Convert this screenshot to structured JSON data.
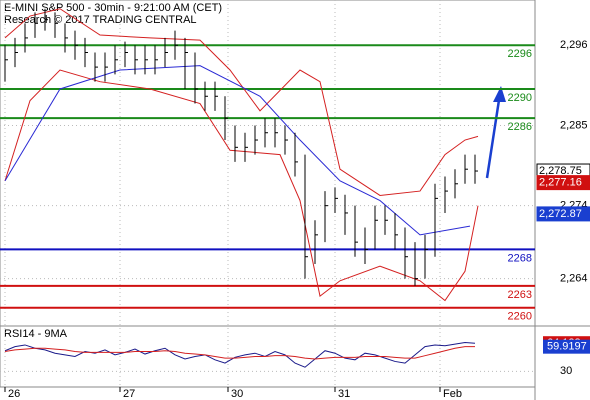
{
  "chart_data": [
    {
      "type": "ohlc",
      "title": "E-MINI S&P 500 - 30min - 9:21:00 AM (CET)",
      "subtitle": "Research © 2017 TRADING CENTRAL",
      "xlim": [
        -0.5,
        53
      ],
      "ylim": [
        2257.5,
        2302.2
      ],
      "xticks": [
        {
          "value": 0,
          "label": "26"
        },
        {
          "value": 11.5,
          "label": "27"
        },
        {
          "value": 22.3,
          "label": "30"
        },
        {
          "value": 33,
          "label": "31"
        },
        {
          "value": 43.5,
          "label": "Feb"
        }
      ],
      "yticks": [
        {
          "value": 2296,
          "label": "2,296"
        },
        {
          "value": 2285,
          "label": "2,285"
        },
        {
          "value": 2274,
          "label": "2,274"
        },
        {
          "value": 2264,
          "label": "2,264"
        }
      ],
      "grid": true,
      "x": [
        0,
        1,
        2,
        3,
        4,
        5,
        6,
        7,
        8,
        9,
        10,
        11,
        12,
        13,
        14,
        15,
        16,
        17,
        18,
        19,
        20,
        21,
        22,
        23,
        24,
        25,
        26,
        27,
        28,
        29,
        30,
        31,
        32,
        33,
        34,
        35,
        36,
        37,
        38,
        39,
        40,
        41,
        42,
        43,
        44,
        45,
        46,
        47
      ],
      "close": [
        2294,
        2295,
        2297,
        2299,
        2299.5,
        2299,
        2297,
        2296,
        2295,
        2293,
        2293,
        2294,
        2295,
        2294,
        2294,
        2294,
        2295,
        2296,
        2295,
        2290,
        2289,
        2289,
        2286,
        2282,
        2282,
        2283,
        2284,
        2284,
        2283,
        2280,
        2267,
        2270,
        2274,
        2275,
        2273,
        2269,
        2268,
        2272,
        2272,
        2270,
        2267,
        2264,
        2268,
        2275,
        2276,
        2277,
        2279,
        2278.75
      ],
      "high": [
        2296,
        2297,
        2299,
        2300.5,
        2301,
        2300.5,
        2299,
        2298,
        2297,
        2295,
        2295,
        2296,
        2296.5,
        2296,
        2296,
        2296,
        2297,
        2298,
        2297,
        2295,
        2291,
        2291,
        2289,
        2285,
        2284,
        2285,
        2286,
        2286,
        2285,
        2284,
        2281,
        2272,
        2276,
        2276.5,
        2275.5,
        2274,
        2271,
        2274,
        2274,
        2273,
        2271,
        2269,
        2270,
        2277,
        2278,
        2279,
        2281,
        2281
      ],
      "low": [
        2291,
        2293,
        2295,
        2297,
        2298,
        2297,
        2295,
        2294,
        2293,
        2291,
        2291,
        2292,
        2293,
        2292,
        2292,
        2292,
        2293,
        2294,
        2290,
        2288,
        2287,
        2287,
        2283,
        2280,
        2280,
        2281,
        2282,
        2282,
        2281,
        2278,
        2264,
        2266,
        2269,
        2273,
        2270,
        2267,
        2266,
        2268,
        2270,
        2268,
        2264,
        2263,
        2264,
        2267,
        2273,
        2275,
        2277,
        2277
      ],
      "color": "#000000",
      "overlays": [
        {
          "color": "#d42020",
          "x": [
            0,
            2.5,
            5.5,
            9.5,
            14.5,
            19.5,
            22.5,
            25.5,
            29.5,
            31.5,
            33.5,
            37.5,
            41.5,
            44,
            46,
            47.3
          ],
          "values": [
            2297,
            2300,
            2301,
            2297.4,
            2297,
            2296.7,
            2292.6,
            2287,
            2292.6,
            2291,
            2279,
            2275.4,
            2276,
            2281,
            2283,
            2283.5
          ]
        },
        {
          "color": "#d42020",
          "x": [
            0,
            2.5,
            5.5,
            9.5,
            14.5,
            19.5,
            22.5,
            27.5,
            29.5,
            31.5,
            33.5,
            37.5,
            41.5,
            44,
            46,
            47.3
          ],
          "values": [
            2277.4,
            2288.4,
            2292.6,
            2291,
            2290,
            2288,
            2281.6,
            2281,
            2274.7,
            2261.6,
            2263.7,
            2265.7,
            2263.7,
            2261,
            2265,
            2274
          ]
        },
        {
          "color": "#2a2ad4",
          "x": [
            0,
            5.5,
            11.5,
            19.5,
            25.5,
            29.5,
            33.5,
            37.5,
            41.5,
            46.5
          ],
          "values": [
            2277.4,
            2290,
            2292.6,
            2293.2,
            2289,
            2283,
            2277.4,
            2274.7,
            2270,
            2271.2
          ]
        }
      ],
      "levels": [
        {
          "value": 2296,
          "color": "#1a8a1a"
        },
        {
          "value": 2290,
          "color": "#1a8a1a"
        },
        {
          "value": 2286,
          "color": "#1a8a1a"
        },
        {
          "value": 2268,
          "color": "#1010c0"
        },
        {
          "value": 2263,
          "color": "#d01010"
        },
        {
          "value": 2260,
          "color": "#d01010"
        }
      ],
      "markers": [
        {
          "value": 2278.75,
          "label": "2,278.75",
          "color": "#000000"
        },
        {
          "value": 2277.16,
          "label": "2,277.16",
          "color": "#d01010"
        },
        {
          "value": 2272.87,
          "label": "2,272.87",
          "color": "#1a3fd0"
        }
      ]
    },
    {
      "type": "line",
      "title": "RSI14 - 9MA",
      "xlim": [
        -0.5,
        53
      ],
      "ylim": [
        11,
        85
      ],
      "yticks": [
        30
      ],
      "x": [
        0,
        1,
        2,
        3,
        4,
        5,
        6,
        7,
        8,
        9,
        10,
        11,
        12,
        13,
        14,
        15,
        16,
        17,
        18,
        19,
        20,
        21,
        22,
        23,
        24,
        25,
        26,
        27,
        28,
        29,
        30,
        31,
        32,
        33,
        34,
        35,
        36,
        37,
        38,
        39,
        40,
        41,
        42,
        43,
        44,
        45,
        46,
        47
      ],
      "series": [
        {
          "color": "#1a1a8a",
          "values": [
            55,
            60,
            62,
            58,
            56,
            52,
            50,
            48,
            54,
            52,
            56,
            50,
            53,
            57,
            51,
            55,
            58,
            50,
            45,
            48,
            50,
            44,
            40,
            47,
            50,
            52,
            48,
            54,
            50,
            40,
            35,
            45,
            55,
            52,
            46,
            44,
            52,
            50,
            46,
            42,
            40,
            50,
            60,
            62,
            61,
            63,
            65,
            64.128
          ]
        },
        {
          "color": "#d42020",
          "values": [
            54,
            56,
            57,
            58,
            58,
            57,
            56,
            54,
            53,
            53,
            53,
            53,
            53,
            54,
            54,
            54,
            55,
            54,
            52,
            51,
            50,
            48,
            46,
            46,
            47,
            48,
            48,
            49,
            49,
            48,
            46,
            45,
            46,
            47,
            47,
            47,
            48,
            48,
            48,
            47,
            46,
            46,
            49,
            52,
            55,
            58,
            60,
            59.9197
          ]
        }
      ],
      "markers": [
        {
          "value": 64.128,
          "color": "#d01010"
        },
        {
          "value": 59.9197,
          "color": "#1a3fd0"
        }
      ]
    }
  ]
}
